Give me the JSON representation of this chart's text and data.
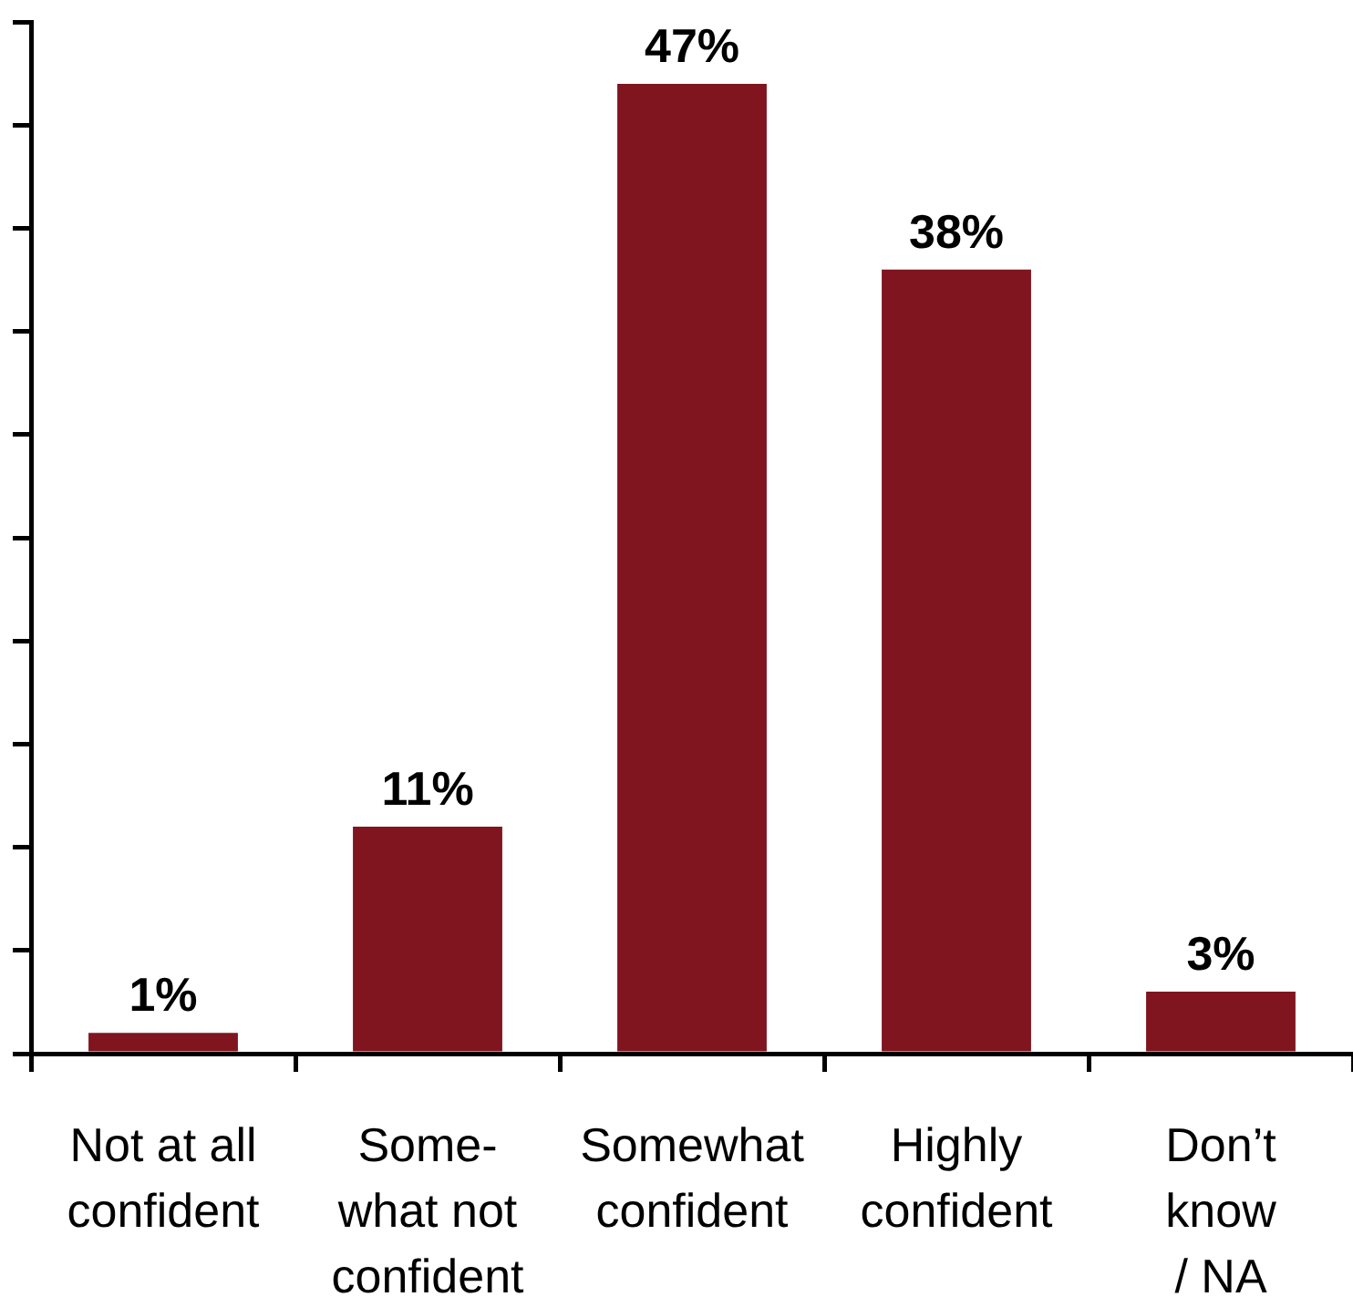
{
  "chart_data": {
    "type": "bar",
    "categories": [
      "Not at all\nconfident",
      "Some-\nwhat not\nconfident",
      "Somewhat\nconfident",
      "Highly\nconfident",
      "Don’t\nknow\n/ NA"
    ],
    "values": [
      1,
      11,
      47,
      38,
      3
    ],
    "value_labels": [
      "1%",
      "11%",
      "47%",
      "38%",
      "3%"
    ],
    "color": "#80151f",
    "tick_labels": "x",
    "grid": false,
    "legend": false
  }
}
